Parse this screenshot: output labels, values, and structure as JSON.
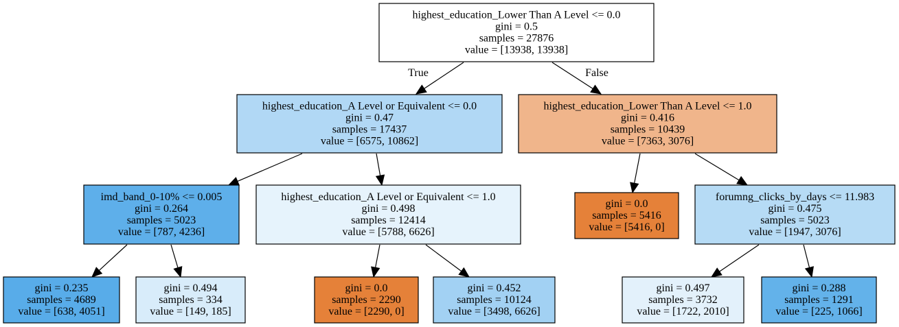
{
  "nodes": [
    {
      "id": "root",
      "lines": [
        "highest_education_Lower Than A Level <= 0.0",
        "gini = 0.5",
        "samples = 27876",
        "value = [13938, 13938]"
      ],
      "fill": "#ffffff"
    },
    {
      "id": "n1",
      "lines": [
        "highest_education_A Level or Equivalent <= 0.0",
        "gini = 0.47",
        "samples = 17437",
        "value = [6575, 10862]"
      ],
      "fill": "#b1d8f5"
    },
    {
      "id": "n2",
      "lines": [
        "highest_education_Lower Than A Level <= 1.0",
        "gini = 0.416",
        "samples = 10439",
        "value = [7363, 3076]"
      ],
      "fill": "#f0b58b"
    },
    {
      "id": "n3",
      "lines": [
        "imd_band_0-10% <= 0.005",
        "gini = 0.264",
        "samples = 5023",
        "value = [787, 4236]"
      ],
      "fill": "#5eafea"
    },
    {
      "id": "n4",
      "lines": [
        "highest_education_A Level or Equivalent <= 1.0",
        "gini = 0.498",
        "samples = 12414",
        "value = [5788, 6626]"
      ],
      "fill": "#e6f3fc"
    },
    {
      "id": "n5",
      "lines": [
        "gini = 0.0",
        "samples = 5416",
        "value = [5416, 0]"
      ],
      "fill": "#e58139"
    },
    {
      "id": "n6",
      "lines": [
        "forumng_clicks_by_days <= 11.983",
        "gini = 0.475",
        "samples = 5023",
        "value = [1947, 3076]"
      ],
      "fill": "#b6dbf5"
    },
    {
      "id": "n7",
      "lines": [
        "gini = 0.235",
        "samples = 4689",
        "value = [638, 4051]"
      ],
      "fill": "#58ace9"
    },
    {
      "id": "n8",
      "lines": [
        "gini = 0.494",
        "samples = 334",
        "value = [149, 185]"
      ],
      "fill": "#d8ecfa"
    },
    {
      "id": "n9",
      "lines": [
        "gini = 0.0",
        "samples = 2290",
        "value = [2290, 0]"
      ],
      "fill": "#e58139"
    },
    {
      "id": "n10",
      "lines": [
        "gini = 0.452",
        "samples = 10124",
        "value = [3498, 6626]"
      ],
      "fill": "#a2d1f3"
    },
    {
      "id": "n11",
      "lines": [
        "gini = 0.497",
        "samples = 3732",
        "value = [1722, 2010]"
      ],
      "fill": "#e3f1fb"
    },
    {
      "id": "n12",
      "lines": [
        "gini = 0.288",
        "samples = 1291",
        "value = [225, 1066]"
      ],
      "fill": "#63b2ea"
    }
  ],
  "edges": [
    {
      "from": "root",
      "to": "n1",
      "label": "True"
    },
    {
      "from": "root",
      "to": "n2",
      "label": "False"
    },
    {
      "from": "n1",
      "to": "n3",
      "label": ""
    },
    {
      "from": "n1",
      "to": "n4",
      "label": ""
    },
    {
      "from": "n2",
      "to": "n5",
      "label": ""
    },
    {
      "from": "n2",
      "to": "n6",
      "label": ""
    },
    {
      "from": "n3",
      "to": "n7",
      "label": ""
    },
    {
      "from": "n3",
      "to": "n8",
      "label": ""
    },
    {
      "from": "n4",
      "to": "n9",
      "label": ""
    },
    {
      "from": "n4",
      "to": "n10",
      "label": ""
    },
    {
      "from": "n6",
      "to": "n11",
      "label": ""
    },
    {
      "from": "n6",
      "to": "n12",
      "label": ""
    }
  ]
}
